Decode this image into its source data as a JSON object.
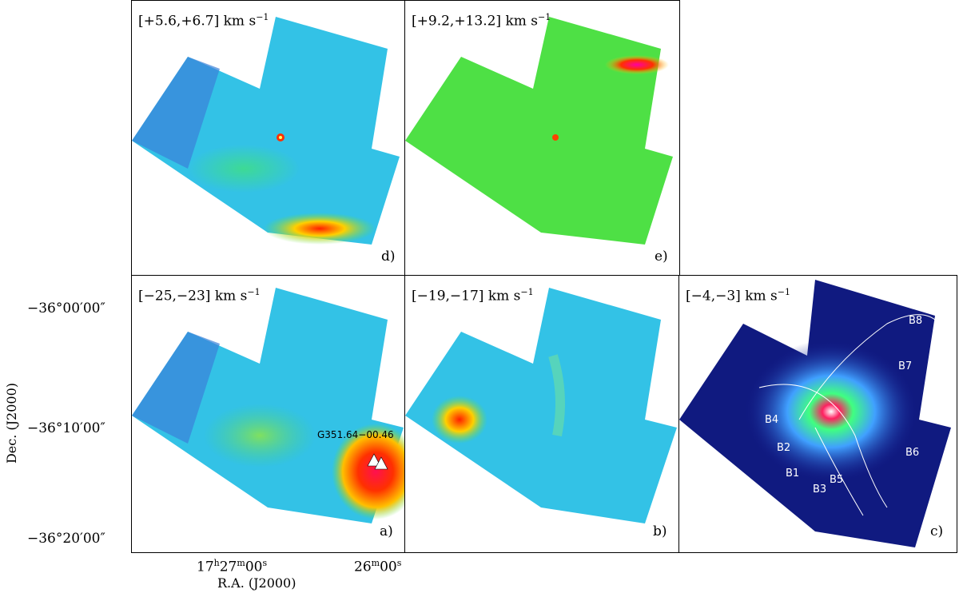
{
  "panels": {
    "d": {
      "range": "[+5.6,+6.7] km s",
      "exp": "−1",
      "id": "d)"
    },
    "e": {
      "range": "[+9.2,+13.2] km s",
      "exp": "−1",
      "id": "e)"
    },
    "a": {
      "range": "[−25,−23] km s",
      "exp": "−1",
      "id": "a)",
      "source": "G351.64−00.46"
    },
    "b": {
      "range": "[−19,−17] km s",
      "exp": "−1",
      "id": "b)"
    },
    "c": {
      "range": "[−4,−3] km s",
      "exp": "−1",
      "id": "c)",
      "clumps": [
        "B8",
        "B7",
        "B4",
        "B2",
        "B1",
        "B3",
        "B5",
        "B6"
      ]
    }
  },
  "axes": {
    "y_ticks": [
      "−36°00′00″",
      "−36°10′00″",
      "−36°20′00″"
    ],
    "x_ticks": {
      "t1_h": "17",
      "t1_m": "27",
      "t1_s": "00",
      "t2_m": "26",
      "t2_s": "00"
    },
    "x_title": "R.A. (J2000)",
    "y_title": "Dec. (J2000)"
  }
}
